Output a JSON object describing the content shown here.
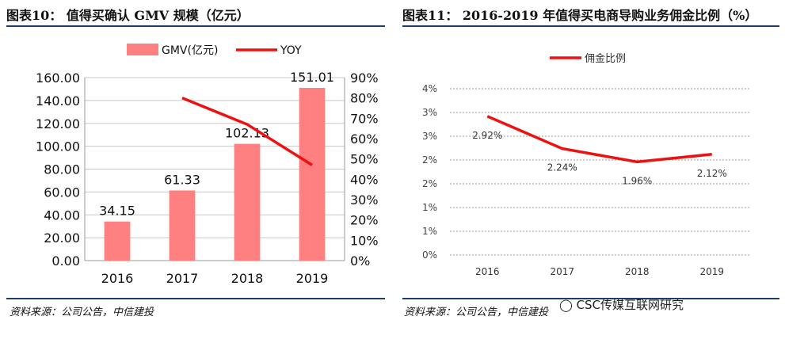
{
  "left": {
    "title": "图表10： 值得买确认 GMV 规模（亿元）",
    "source": "资料来源：公司公告，中信建投"
  },
  "right": {
    "title": "图表11： 2016-2019 年值得买电商导购业务佣金比例（%）",
    "source": "资料来源：公司公告，中信建投"
  },
  "watermark": "CSC传媒互联网研究",
  "colors": {
    "bar": "#ff8080",
    "line": "#ee1111",
    "rule": "#1f3c6e"
  },
  "chart_data": [
    {
      "type": "bar",
      "title": "值得买确认 GMV 规模（亿元）",
      "categories": [
        "2016",
        "2017",
        "2018",
        "2019"
      ],
      "series": [
        {
          "name": "GMV(亿元)",
          "type": "bar",
          "axis": "left",
          "values": [
            34.15,
            61.33,
            102.13,
            151.01
          ],
          "labels": [
            "34.15",
            "61.33",
            "102.13",
            "151.01"
          ]
        },
        {
          "name": "YOY",
          "type": "line",
          "axis": "right",
          "values": [
            null,
            80,
            67,
            47
          ]
        }
      ],
      "y_left": {
        "min": 0,
        "max": 160,
        "step": 20,
        "ticks": [
          "0.00",
          "20.00",
          "40.00",
          "60.00",
          "80.00",
          "100.00",
          "120.00",
          "140.00",
          "160.00"
        ]
      },
      "y_right": {
        "min": 0,
        "max": 90,
        "step": 10,
        "ticks": [
          "0%",
          "10%",
          "20%",
          "30%",
          "40%",
          "50%",
          "60%",
          "70%",
          "80%",
          "90%"
        ]
      },
      "legend": [
        "GMV(亿元)",
        "YOY"
      ],
      "legend_position": "top",
      "grid": true
    },
    {
      "type": "line",
      "title": "2016-2019 年值得买电商导购业务佣金比例（%）",
      "categories": [
        "2016",
        "2017",
        "2018",
        "2019"
      ],
      "series": [
        {
          "name": "佣金比例",
          "values": [
            2.92,
            2.24,
            1.96,
            2.12
          ],
          "labels": [
            "2.92%",
            "2.24%",
            "1.96%",
            "2.12%"
          ]
        }
      ],
      "y": {
        "min": 0,
        "max": 3.5,
        "step": 0.5,
        "ticks": [
          "0%",
          "1%",
          "1%",
          "2%",
          "2%",
          "3%",
          "3%",
          "4%"
        ]
      },
      "legend": [
        "佣金比例"
      ],
      "legend_position": "top-left",
      "grid": true
    }
  ]
}
